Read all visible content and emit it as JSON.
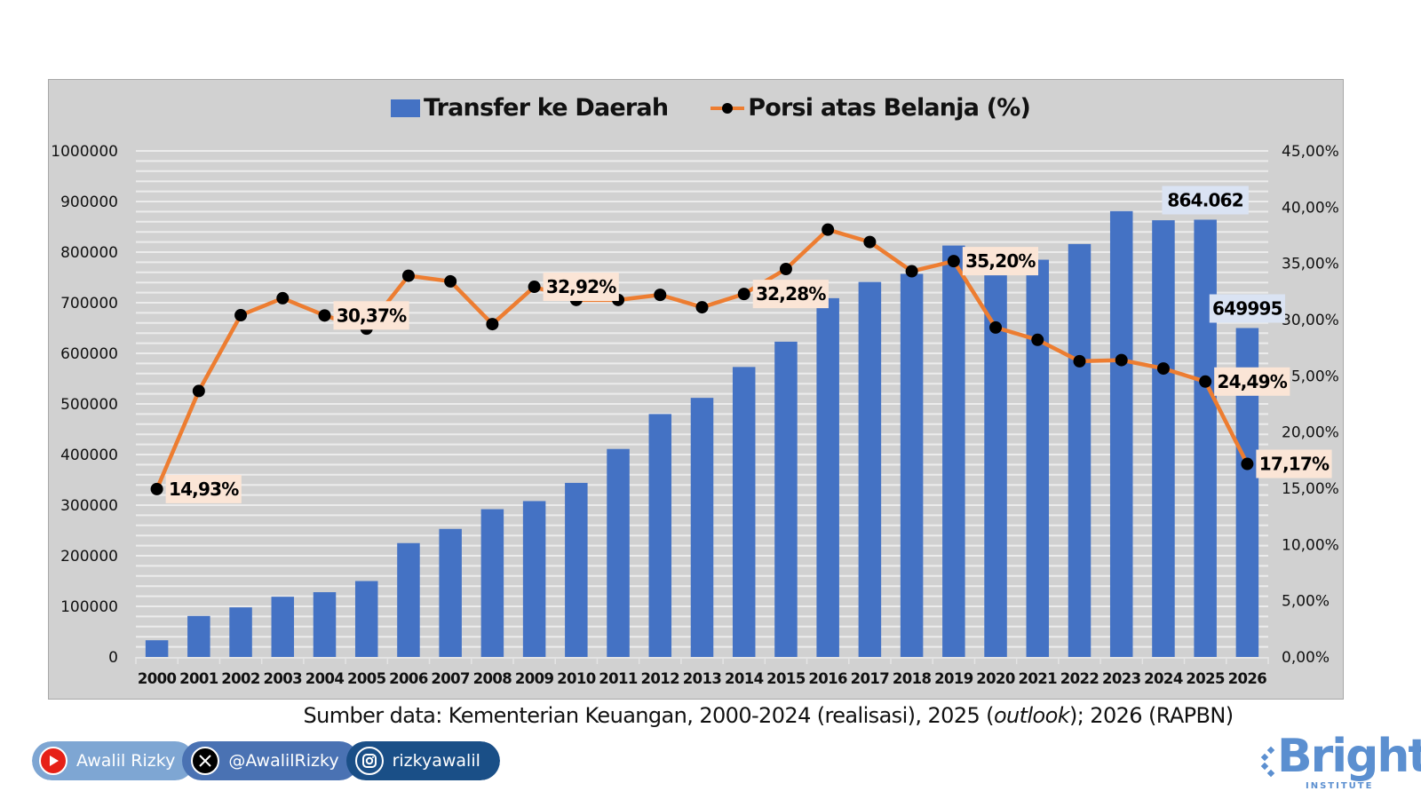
{
  "chart_data": {
    "type": "bar+line",
    "title": "",
    "categories": [
      "2000",
      "2001",
      "2002",
      "2003",
      "2004",
      "2005",
      "2006",
      "2007",
      "2008",
      "2009",
      "2010",
      "2011",
      "2012",
      "2013",
      "2014",
      "2015",
      "2016",
      "2017",
      "2018",
      "2019",
      "2020",
      "2021",
      "2022",
      "2023",
      "2024",
      "2025",
      "2026"
    ],
    "series": [
      {
        "name": "Transfer ke Daerah",
        "type": "bar",
        "axis": "left",
        "color": "#4472c4",
        "values": [
          33000,
          81000,
          98000,
          119000,
          128000,
          150000,
          225000,
          253000,
          292000,
          308000,
          344000,
          411000,
          480000,
          512000,
          573000,
          623000,
          709000,
          741000,
          757000,
          813000,
          763000,
          785000,
          816000,
          881000,
          863000,
          864062,
          649995
        ],
        "data_labels": [
          {
            "index": 25,
            "text": "864.062"
          },
          {
            "index": 26,
            "text": "649995"
          }
        ]
      },
      {
        "name": "Porsi atas Belanja (%)",
        "type": "line",
        "axis": "right",
        "color": "#ed7d31",
        "marker_color": "#000000",
        "values": [
          14.93,
          23.65,
          30.39,
          31.9,
          30.37,
          29.2,
          33.9,
          33.4,
          29.6,
          32.92,
          31.75,
          31.75,
          32.2,
          31.1,
          32.28,
          34.5,
          38.0,
          36.9,
          34.3,
          35.2,
          29.3,
          28.2,
          26.3,
          26.4,
          25.65,
          24.49,
          17.17
        ],
        "data_labels": [
          {
            "index": 0,
            "text": "14,93%"
          },
          {
            "index": 4,
            "text": "30,37%"
          },
          {
            "index": 9,
            "text": "32,92%"
          },
          {
            "index": 14,
            "text": "32,28%"
          },
          {
            "index": 19,
            "text": "35,20%"
          },
          {
            "index": 25,
            "text": "24,49%"
          },
          {
            "index": 26,
            "text": "17,17%"
          }
        ]
      }
    ],
    "ylim_left": [
      0,
      1000000
    ],
    "ylim_right": [
      0,
      45
    ],
    "yticks_left": [
      "0",
      "100000",
      "200000",
      "300000",
      "400000",
      "500000",
      "600000",
      "700000",
      "800000",
      "900000",
      "1000000"
    ],
    "yticks_right": [
      "0,00%",
      "5,00%",
      "10,00%",
      "15,00%",
      "20,00%",
      "25,00%",
      "30,00%",
      "35,00%",
      "40,00%",
      "45,00%"
    ],
    "grid": true,
    "legend_position": "top-center",
    "xlabel": "",
    "ylabel": ""
  },
  "legend": {
    "bar_label": "Transfer ke Daerah",
    "line_label": "Porsi atas Belanja (%)"
  },
  "source": {
    "prefix": "Sumber data: Kementerian Keuangan, 2000-2024 (realisasi), 2025 (",
    "italic": "outlook",
    "suffix": "); 2026 (RAPBN)"
  },
  "social": {
    "youtube": "Awalil Rizky",
    "x": "@AwalilRizky",
    "instagram": "rizkyawalil"
  },
  "logo": {
    "name": "Bright",
    "sub": "INSTITUTE"
  }
}
